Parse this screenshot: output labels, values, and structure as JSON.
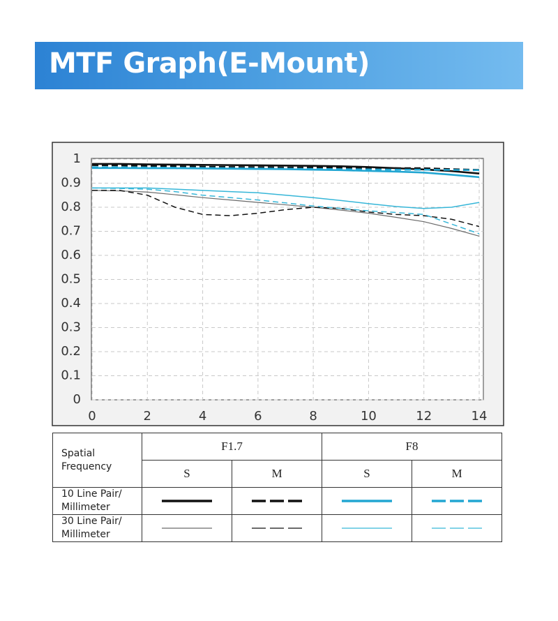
{
  "title": "MTF Graph(E-Mount)",
  "chart_data": {
    "type": "line",
    "x": [
      0,
      1,
      2,
      3,
      4,
      5,
      6,
      7,
      8,
      9,
      10,
      11,
      12,
      13,
      14
    ],
    "xlim": [
      0,
      14
    ],
    "xticks": [
      0,
      2,
      4,
      6,
      8,
      10,
      12,
      14
    ],
    "ylim": [
      0,
      1
    ],
    "yticks": [
      0,
      0.1,
      0.2,
      0.3,
      0.4,
      0.5,
      0.6,
      0.7,
      0.8,
      0.9,
      1
    ],
    "grid": true,
    "series": [
      {
        "color": "#111111",
        "dashed": false,
        "width": 2.6,
        "values": [
          0.98,
          0.98,
          0.978,
          0.977,
          0.976,
          0.975,
          0.974,
          0.973,
          0.972,
          0.97,
          0.967,
          0.962,
          0.957,
          0.95,
          0.94
        ]
      },
      {
        "color": "#111111",
        "dashed": true,
        "width": 2.6,
        "values": [
          0.975,
          0.974,
          0.972,
          0.97,
          0.968,
          0.967,
          0.966,
          0.965,
          0.965,
          0.964,
          0.963,
          0.962,
          0.962,
          0.958,
          0.955
        ]
      },
      {
        "color": "#22a6d2",
        "dashed": false,
        "width": 2.6,
        "values": [
          0.963,
          0.963,
          0.962,
          0.962,
          0.961,
          0.96,
          0.959,
          0.958,
          0.956,
          0.954,
          0.951,
          0.948,
          0.944,
          0.935,
          0.925
        ]
      },
      {
        "color": "#22a6d2",
        "dashed": true,
        "width": 2.6,
        "values": [
          0.966,
          0.966,
          0.965,
          0.964,
          0.963,
          0.962,
          0.961,
          0.96,
          0.959,
          0.958,
          0.957,
          0.956,
          0.956,
          0.955,
          0.954
        ]
      },
      {
        "color": "#6a6a6a",
        "dashed": false,
        "width": 1.2,
        "values": [
          0.87,
          0.868,
          0.863,
          0.852,
          0.84,
          0.83,
          0.82,
          0.81,
          0.8,
          0.788,
          0.775,
          0.758,
          0.74,
          0.712,
          0.68
        ]
      },
      {
        "color": "#111111",
        "dashed": true,
        "width": 1.5,
        "values": [
          0.87,
          0.87,
          0.85,
          0.8,
          0.77,
          0.765,
          0.775,
          0.79,
          0.8,
          0.795,
          0.78,
          0.77,
          0.765,
          0.75,
          0.72
        ]
      },
      {
        "color": "#36b6d8",
        "dashed": false,
        "width": 1.5,
        "values": [
          0.88,
          0.88,
          0.88,
          0.875,
          0.87,
          0.865,
          0.86,
          0.85,
          0.84,
          0.828,
          0.815,
          0.803,
          0.795,
          0.8,
          0.82
        ]
      },
      {
        "color": "#36b6d8",
        "dashed": true,
        "width": 1.5,
        "values": [
          0.88,
          0.878,
          0.875,
          0.865,
          0.85,
          0.84,
          0.83,
          0.818,
          0.805,
          0.795,
          0.785,
          0.778,
          0.77,
          0.73,
          0.69
        ]
      }
    ]
  },
  "legend": {
    "corner": "Spatial Frequency",
    "groups": [
      "F1.7",
      "F8"
    ],
    "subgroups": [
      "S",
      "M",
      "S",
      "M"
    ],
    "rows": [
      "10 Line Pair/ Millimeter",
      "30 Line Pair/ Millimeter"
    ]
  }
}
